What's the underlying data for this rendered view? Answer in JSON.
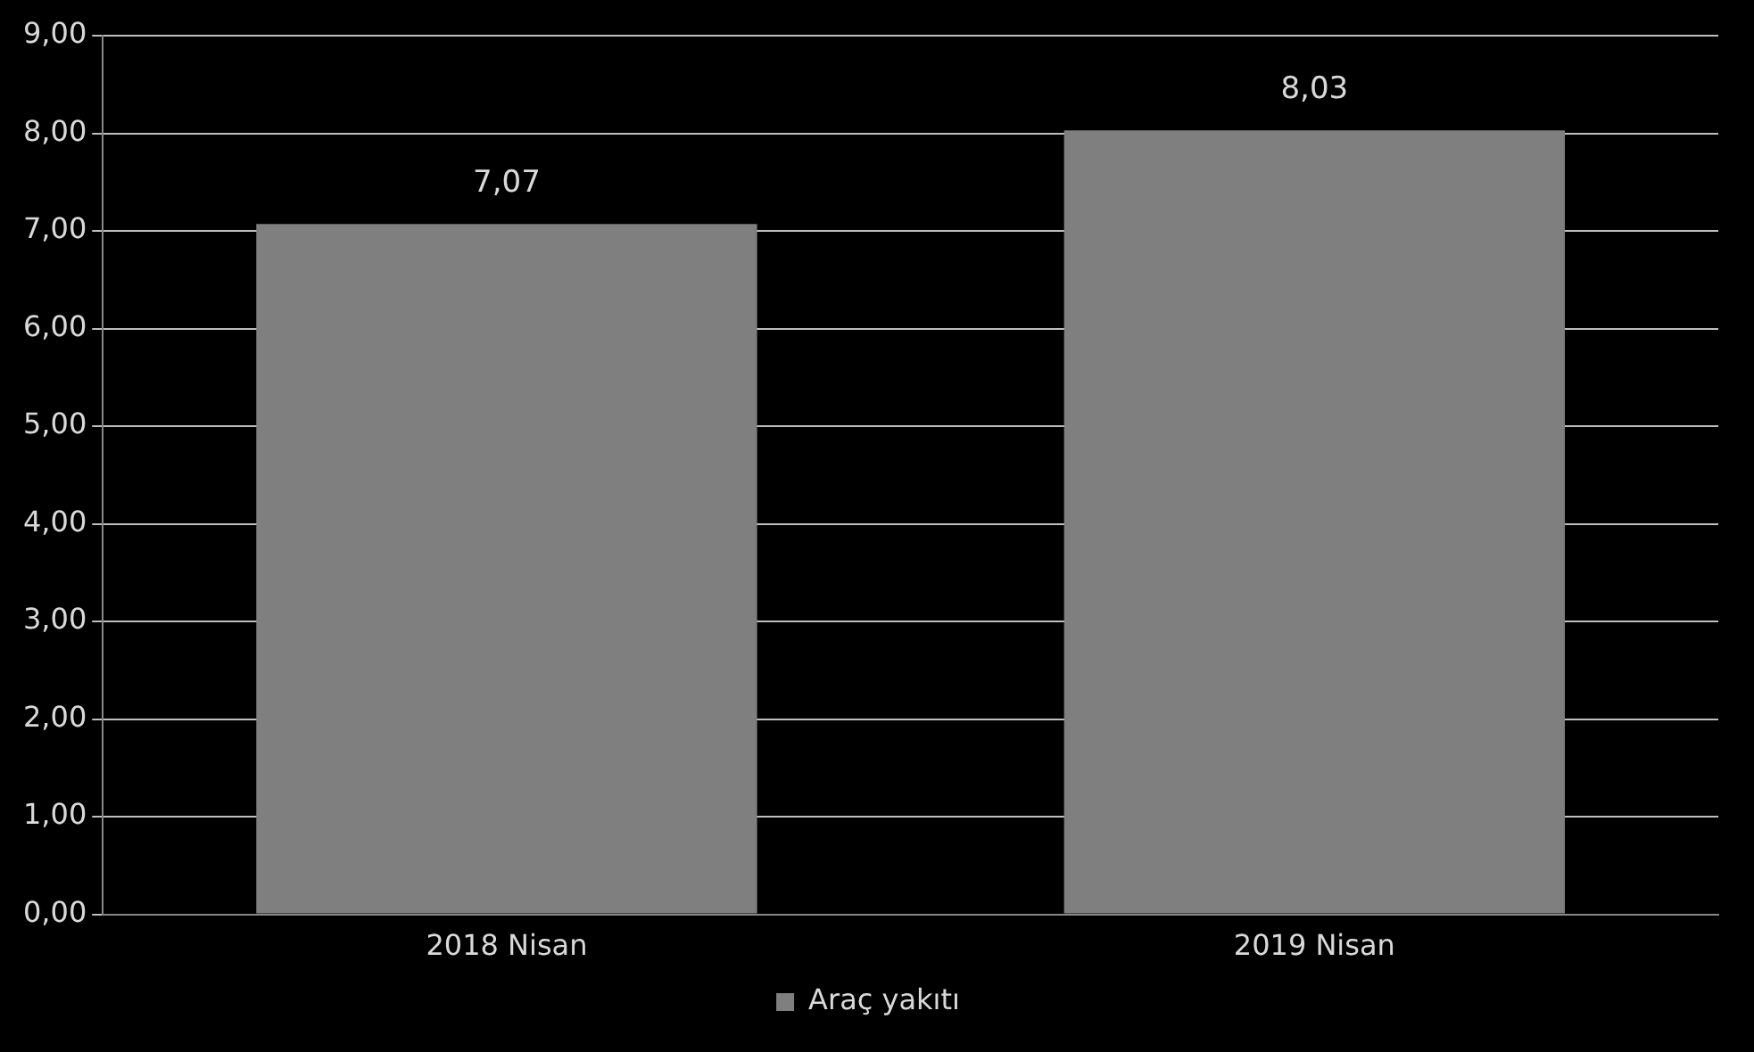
{
  "chart_data": {
    "type": "bar",
    "categories": [
      "2018 Nisan",
      "2019 Nisan"
    ],
    "series": [
      {
        "name": "Araç yakıtı",
        "color": "#7f7f7f",
        "values": [
          7.07,
          8.03
        ],
        "value_labels": [
          "7,07",
          "8,03"
        ]
      }
    ],
    "ylim": [
      0,
      9
    ],
    "yticks": [
      {
        "value": 0,
        "label": "0,00"
      },
      {
        "value": 1,
        "label": "1,00"
      },
      {
        "value": 2,
        "label": "2,00"
      },
      {
        "value": 3,
        "label": "3,00"
      },
      {
        "value": 4,
        "label": "4,00"
      },
      {
        "value": 5,
        "label": "5,00"
      },
      {
        "value": 6,
        "label": "6,00"
      },
      {
        "value": 7,
        "label": "7,00"
      },
      {
        "value": 8,
        "label": "8,00"
      },
      {
        "value": 9,
        "label": "9,00"
      }
    ],
    "grid": "y",
    "legend": "bottom"
  }
}
